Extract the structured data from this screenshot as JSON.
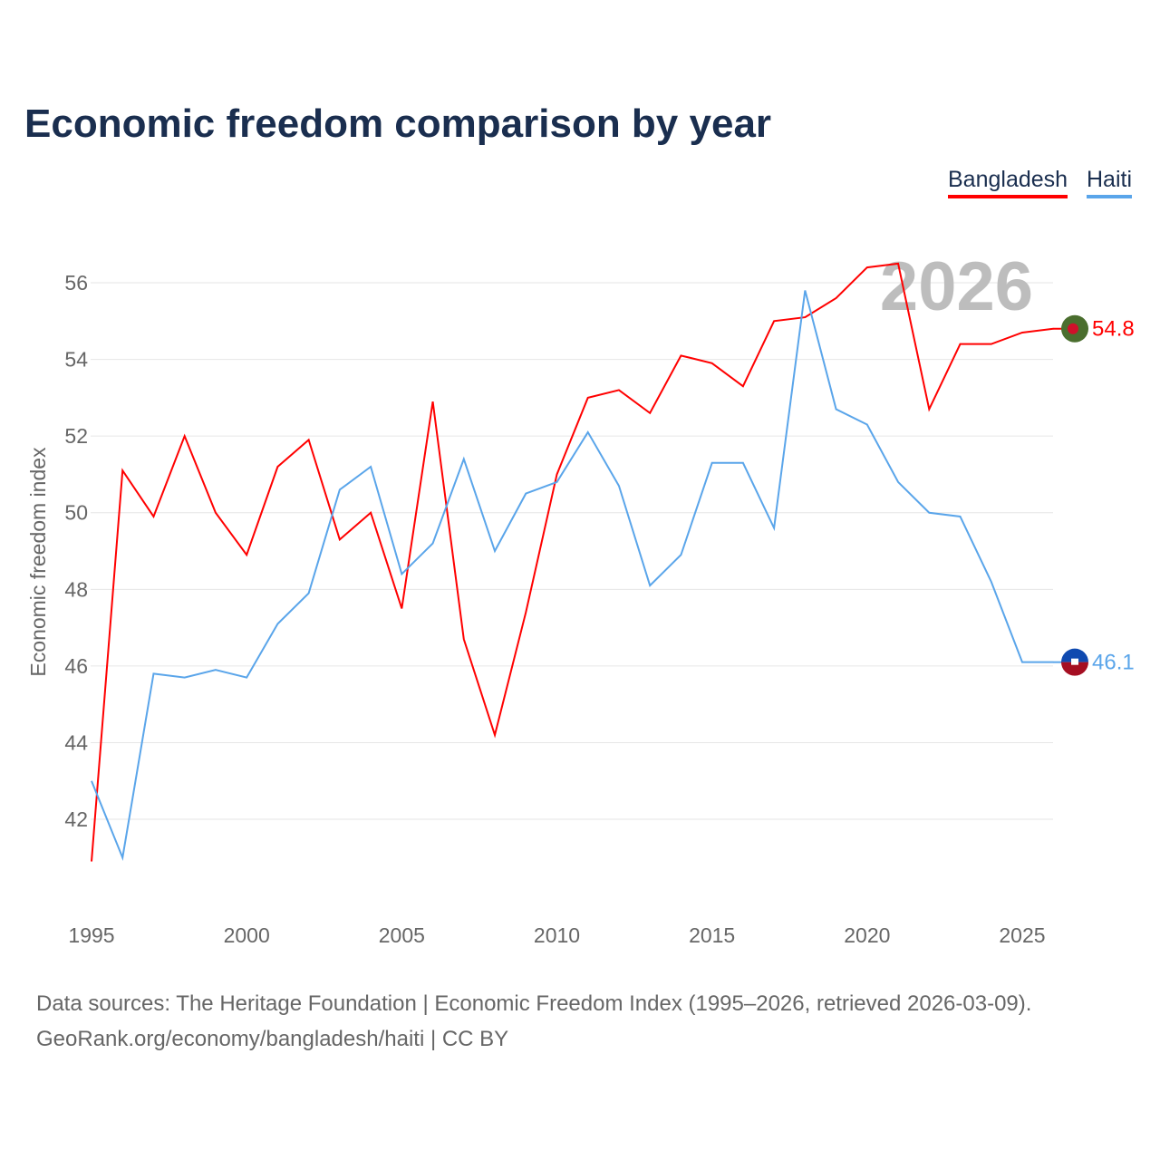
{
  "chart_data": {
    "type": "line",
    "title": "Economic freedom comparison by year",
    "xlabel": "",
    "ylabel": "Economic freedom index",
    "ylim": [
      40,
      57
    ],
    "xlim": [
      1995,
      2026
    ],
    "yticks": [
      42,
      44,
      46,
      48,
      50,
      52,
      54,
      56
    ],
    "xticks": [
      1995,
      2000,
      2005,
      2010,
      2015,
      2020,
      2025
    ],
    "grid": true,
    "legend_position": "top-right",
    "watermark_year": "2026",
    "x": [
      1995,
      1996,
      1997,
      1998,
      1999,
      2000,
      2001,
      2002,
      2003,
      2004,
      2005,
      2006,
      2007,
      2008,
      2009,
      2010,
      2011,
      2012,
      2013,
      2014,
      2015,
      2016,
      2017,
      2018,
      2019,
      2020,
      2021,
      2022,
      2023,
      2024,
      2025,
      2026
    ],
    "series": [
      {
        "name": "Bangladesh",
        "color": "#ff0000",
        "end_label": "54.8",
        "values": [
          40.9,
          51.1,
          49.9,
          52.0,
          50.0,
          48.9,
          51.2,
          51.9,
          49.3,
          50.0,
          47.5,
          52.9,
          46.7,
          44.2,
          47.4,
          51.0,
          53.0,
          53.2,
          52.6,
          54.1,
          53.9,
          53.3,
          55.0,
          55.1,
          55.6,
          56.4,
          56.5,
          52.7,
          54.4,
          54.4,
          54.7,
          54.8
        ]
      },
      {
        "name": "Haiti",
        "color": "#5aa5ea",
        "end_label": "46.1",
        "values": [
          43.0,
          41.0,
          45.8,
          45.7,
          45.9,
          45.7,
          47.1,
          47.9,
          50.6,
          51.2,
          48.4,
          49.2,
          51.4,
          49.0,
          50.5,
          50.8,
          52.1,
          50.7,
          48.1,
          48.9,
          51.3,
          51.3,
          49.6,
          55.8,
          52.7,
          52.3,
          50.8,
          50.0,
          49.9,
          48.2,
          46.1,
          46.1
        ]
      }
    ]
  },
  "source": {
    "line1": "Data sources: The Heritage Foundation | Economic Freedom Index (1995–2026, retrieved 2026-03-09).",
    "line2": "GeoRank.org/economy/bangladesh/haiti | CC BY"
  }
}
